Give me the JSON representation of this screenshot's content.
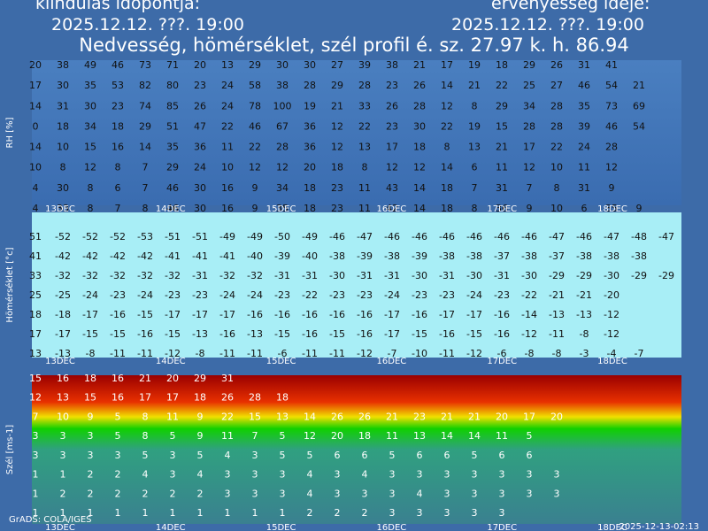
{
  "header": {
    "start_label": "kiindulás időpontja:",
    "valid_label": "érvényesség ideje:",
    "start_time": "2025.12.12. ???. 19:00",
    "valid_time": "2025.12.12. ???. 19:00",
    "title": "Nedvesség, hömérséklet, szél profil é. sz. 27.97 k. h. 86.94"
  },
  "dates": [
    "13DEC",
    "14DEC",
    "15DEC",
    "16DEC",
    "17DEC",
    "18DEC"
  ],
  "panels": [
    {
      "ylabel": "RH [%]",
      "rows": [
        [
          "20",
          "38",
          "49",
          "46",
          "73",
          "71",
          "20",
          "13",
          "29",
          "30",
          "30",
          "27",
          "39",
          "38",
          "21",
          "17",
          "19",
          "18",
          "29",
          "26",
          "31",
          "41"
        ],
        [
          "17",
          "30",
          "35",
          "53",
          "82",
          "80",
          "23",
          "24",
          "58",
          "38",
          "28",
          "29",
          "28",
          "23",
          "26",
          "14",
          "21",
          "22",
          "25",
          "27",
          "46",
          "54",
          "21"
        ],
        [
          "14",
          "31",
          "30",
          "23",
          "74",
          "85",
          "26",
          "24",
          "78",
          "100",
          "19",
          "21",
          "33",
          "26",
          "28",
          "12",
          "8",
          "29",
          "34",
          "28",
          "35",
          "73",
          "69"
        ],
        [
          "0",
          "18",
          "34",
          "18",
          "29",
          "51",
          "47",
          "22",
          "46",
          "67",
          "36",
          "12",
          "22",
          "23",
          "30",
          "22",
          "19",
          "15",
          "28",
          "28",
          "39",
          "46",
          "54"
        ],
        [
          "14",
          "10",
          "15",
          "16",
          "14",
          "35",
          "36",
          "11",
          "22",
          "28",
          "36",
          "12",
          "13",
          "17",
          "18",
          "8",
          "13",
          "21",
          "17",
          "22",
          "24",
          "28"
        ],
        [
          "10",
          "8",
          "12",
          "8",
          "7",
          "29",
          "24",
          "10",
          "12",
          "12",
          "20",
          "18",
          "8",
          "12",
          "12",
          "14",
          "6",
          "11",
          "12",
          "10",
          "11",
          "12"
        ],
        [
          "4",
          "30",
          "8",
          "6",
          "7",
          "46",
          "30",
          "16",
          "9",
          "34",
          "18",
          "23",
          "11",
          "43",
          "14",
          "18",
          "7",
          "31",
          "7",
          "8",
          "31",
          "9"
        ],
        [
          "4",
          "33",
          "8",
          "7",
          "8",
          "46",
          "30",
          "16",
          "9",
          "35",
          "18",
          "23",
          "11",
          "42",
          "14",
          "18",
          "8",
          "36",
          "9",
          "10",
          "6",
          "35",
          "9"
        ]
      ]
    },
    {
      "ylabel": "Hömérséklet [°c]",
      "rows": [
        [
          "51",
          "-52",
          "-52",
          "-52",
          "-53",
          "-51",
          "-51",
          "-49",
          "-49",
          "-50",
          "-49",
          "-46",
          "-47",
          "-46",
          "-46",
          "-46",
          "-46",
          "-46",
          "-46",
          "-47",
          "-46",
          "-47",
          "-48",
          "-47"
        ],
        [
          "41",
          "-42",
          "-42",
          "-42",
          "-42",
          "-41",
          "-41",
          "-41",
          "-40",
          "-39",
          "-40",
          "-38",
          "-39",
          "-38",
          "-39",
          "-38",
          "-38",
          "-37",
          "-38",
          "-37",
          "-38",
          "-38",
          "-38"
        ],
        [
          "33",
          "-32",
          "-32",
          "-32",
          "-32",
          "-32",
          "-31",
          "-32",
          "-32",
          "-31",
          "-31",
          "-30",
          "-31",
          "-31",
          "-30",
          "-31",
          "-30",
          "-31",
          "-30",
          "-29",
          "-29",
          "-30",
          "-29",
          "-29"
        ],
        [
          "25",
          "-25",
          "-24",
          "-23",
          "-24",
          "-23",
          "-23",
          "-24",
          "-24",
          "-23",
          "-22",
          "-23",
          "-23",
          "-24",
          "-23",
          "-23",
          "-24",
          "-23",
          "-22",
          "-21",
          "-21",
          "-20"
        ],
        [
          "18",
          "-18",
          "-17",
          "-16",
          "-15",
          "-17",
          "-17",
          "-17",
          "-16",
          "-16",
          "-16",
          "-16",
          "-16",
          "-17",
          "-16",
          "-17",
          "-17",
          "-16",
          "-14",
          "-13",
          "-13",
          "-12"
        ],
        [
          "17",
          "-17",
          "-15",
          "-15",
          "-16",
          "-15",
          "-13",
          "-16",
          "-13",
          "-15",
          "-16",
          "-15",
          "-16",
          "-17",
          "-15",
          "-16",
          "-15",
          "-16",
          "-12",
          "-11",
          "-8",
          "-12"
        ],
        [
          "13",
          "-13",
          "-8",
          "-11",
          "-11",
          "-12",
          "-8",
          "-11",
          "-11",
          "-6",
          "-11",
          "-11",
          "-12",
          "-7",
          "-10",
          "-11",
          "-12",
          "-6",
          "-8",
          "-8",
          "-3",
          "-4",
          "-7"
        ]
      ]
    },
    {
      "ylabel": "Szél [ms-1]",
      "rows": [
        [
          "15",
          "16",
          "18",
          "16",
          "21",
          "20",
          "29",
          "31"
        ],
        [
          "12",
          "13",
          "15",
          "16",
          "17",
          "17",
          "18",
          "26",
          "28",
          "18"
        ],
        [
          "7",
          "10",
          "9",
          "5",
          "8",
          "11",
          "9",
          "22",
          "15",
          "13",
          "14",
          "26",
          "26",
          "21",
          "23",
          "21",
          "21",
          "20",
          "17",
          "20"
        ],
        [
          "3",
          "3",
          "3",
          "5",
          "8",
          "5",
          "9",
          "11",
          "7",
          "5",
          "12",
          "20",
          "18",
          "11",
          "13",
          "14",
          "14",
          "11",
          "5"
        ],
        [
          "3",
          "3",
          "3",
          "3",
          "5",
          "3",
          "5",
          "4",
          "3",
          "5",
          "5",
          "6",
          "6",
          "5",
          "6",
          "6",
          "5",
          "6",
          "6"
        ],
        [
          "1",
          "1",
          "2",
          "2",
          "4",
          "3",
          "4",
          "3",
          "3",
          "3",
          "4",
          "3",
          "4",
          "3",
          "3",
          "3",
          "3",
          "3",
          "3",
          "3"
        ],
        [
          "1",
          "2",
          "2",
          "2",
          "2",
          "2",
          "2",
          "3",
          "3",
          "3",
          "4",
          "3",
          "3",
          "3",
          "4",
          "3",
          "3",
          "3",
          "3",
          "3"
        ],
        [
          "1",
          "1",
          "1",
          "1",
          "1",
          "1",
          "1",
          "1",
          "1",
          "1",
          "2",
          "2",
          "2",
          "3",
          "3",
          "3",
          "3",
          "3"
        ]
      ]
    }
  ],
  "footer": {
    "left": "GrADS: COLA/IGES",
    "right": "2025-12-13-02:13"
  }
}
